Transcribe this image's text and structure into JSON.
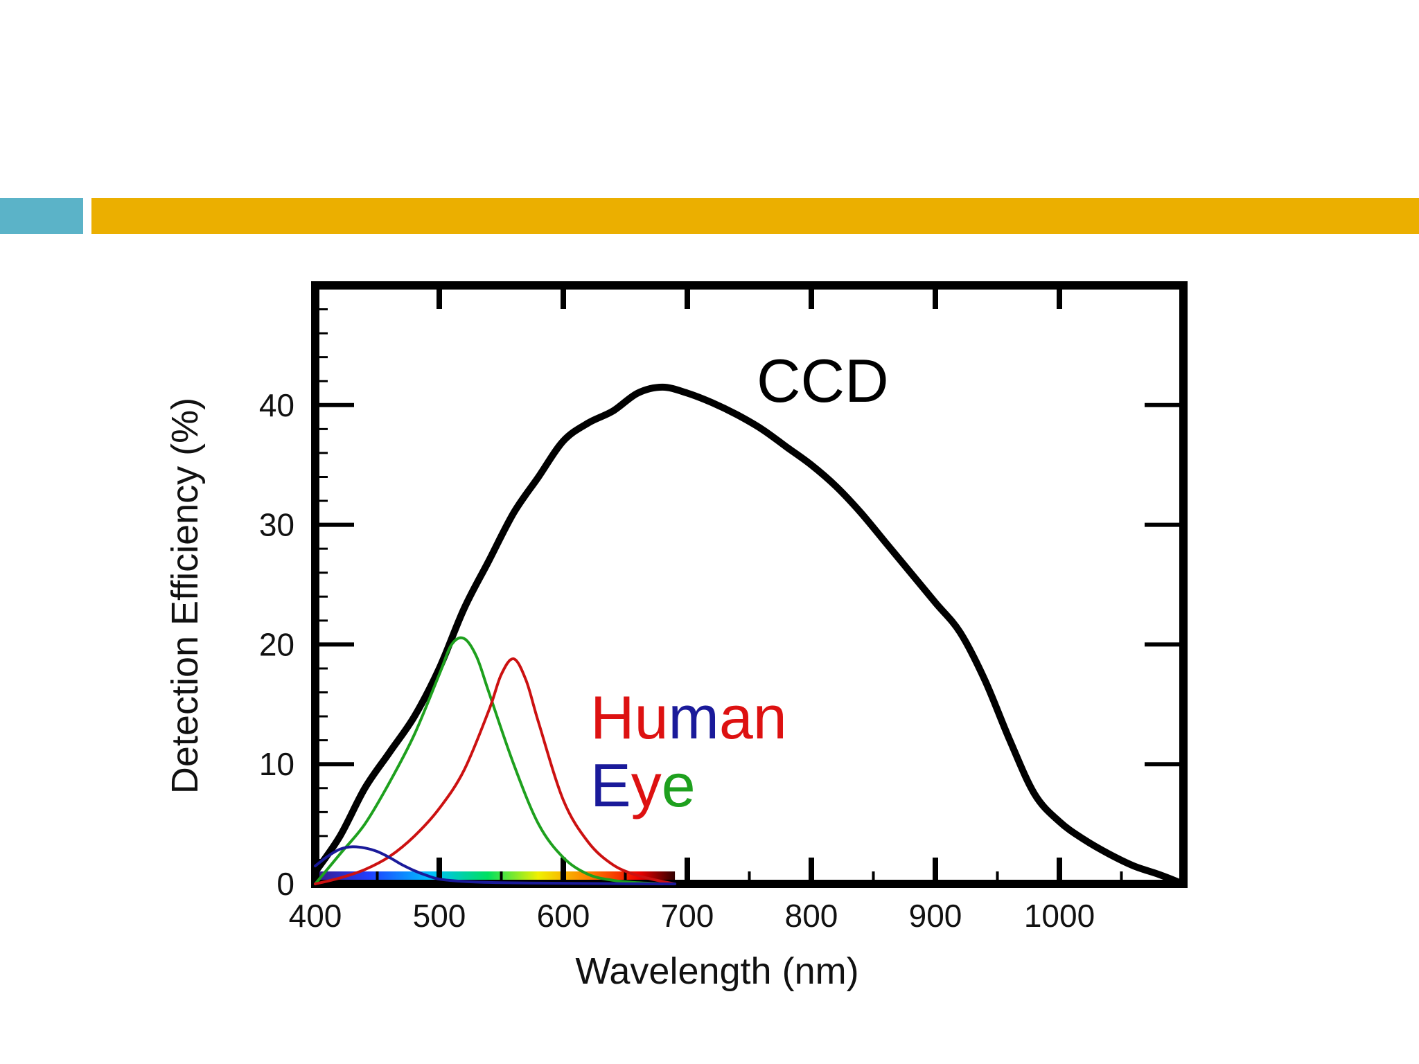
{
  "slide": {
    "accent_bar_left_color": "#5bb3c8",
    "accent_bar_right_color": "#ebaf00"
  },
  "chart_data": {
    "type": "line",
    "title": "",
    "xlabel": "Wavelength (nm)",
    "ylabel": "Detection Efficiency (%)",
    "xlim": [
      400,
      1100
    ],
    "ylim": [
      0,
      50
    ],
    "x_ticks": [
      400,
      500,
      600,
      700,
      800,
      900,
      1000
    ],
    "y_ticks": [
      0,
      10,
      20,
      30,
      40
    ],
    "x_tick_labels": [
      "400",
      "500",
      "600",
      "700",
      "800",
      "900",
      "1000"
    ],
    "y_tick_labels": [
      "0",
      "10",
      "20",
      "30",
      "40"
    ],
    "annotations": {
      "ccd": "CCD",
      "human_letters": [
        {
          "text": "H",
          "color": "#dd1111"
        },
        {
          "text": "u",
          "color": "#dd1111"
        },
        {
          "text": "m",
          "color": "#1a1a9a"
        },
        {
          "text": "a",
          "color": "#dd1111"
        },
        {
          "text": "n",
          "color": "#dd1111"
        }
      ],
      "eye_letters": [
        {
          "text": "E",
          "color": "#1a1a9a"
        },
        {
          "text": "y",
          "color": "#dd1111"
        },
        {
          "text": "e",
          "color": "#1ea01e"
        }
      ]
    },
    "spectrum_band": {
      "from": 400,
      "to": 690
    },
    "series": [
      {
        "name": "CCD",
        "color": "#000000",
        "x": [
          400,
          420,
          440,
          460,
          480,
          500,
          520,
          540,
          560,
          580,
          600,
          620,
          640,
          660,
          680,
          700,
          720,
          740,
          760,
          780,
          800,
          820,
          840,
          860,
          880,
          900,
          920,
          940,
          960,
          980,
          1000,
          1020,
          1040,
          1060,
          1080,
          1095
        ],
        "values": [
          1,
          4,
          8,
          11,
          14,
          18,
          23,
          27,
          31,
          34,
          37,
          38.5,
          39.5,
          41,
          41.5,
          41,
          40.2,
          39.2,
          38,
          36.5,
          35,
          33.2,
          31,
          28.5,
          26,
          23.5,
          21,
          17,
          12,
          7.5,
          5.2,
          3.7,
          2.5,
          1.5,
          0.8,
          0.2
        ]
      },
      {
        "name": "Human Eye (green)",
        "color": "#1ea01e",
        "x": [
          400,
          420,
          440,
          460,
          480,
          500,
          510,
          520,
          530,
          540,
          560,
          580,
          600,
          620,
          640,
          660,
          680
        ],
        "values": [
          0,
          2.5,
          5,
          8.5,
          12.5,
          17.5,
          20,
          20.5,
          19,
          16,
          10,
          5,
          2.2,
          0.8,
          0.3,
          0.1,
          0
        ]
      },
      {
        "name": "Human Eye (red)",
        "color": "#cc1111",
        "x": [
          400,
          420,
          440,
          460,
          480,
          500,
          520,
          540,
          550,
          560,
          570,
          580,
          600,
          620,
          640,
          660,
          680,
          690
        ],
        "values": [
          0,
          0.5,
          1.2,
          2.3,
          4,
          6.3,
          9.5,
          14.5,
          17.5,
          18.8,
          17,
          13.5,
          7,
          3.5,
          1.6,
          0.7,
          0.2,
          0
        ]
      },
      {
        "name": "Human Eye (blue)",
        "color": "#1a1a9a",
        "x": [
          400,
          410,
          420,
          430,
          440,
          450,
          460,
          470,
          480,
          490,
          500,
          520,
          550,
          600,
          650,
          690
        ],
        "values": [
          1.5,
          2.3,
          2.9,
          3.1,
          3,
          2.7,
          2.2,
          1.6,
          1.1,
          0.7,
          0.4,
          0.2,
          0.1,
          0.05,
          0.02,
          0
        ]
      }
    ]
  }
}
